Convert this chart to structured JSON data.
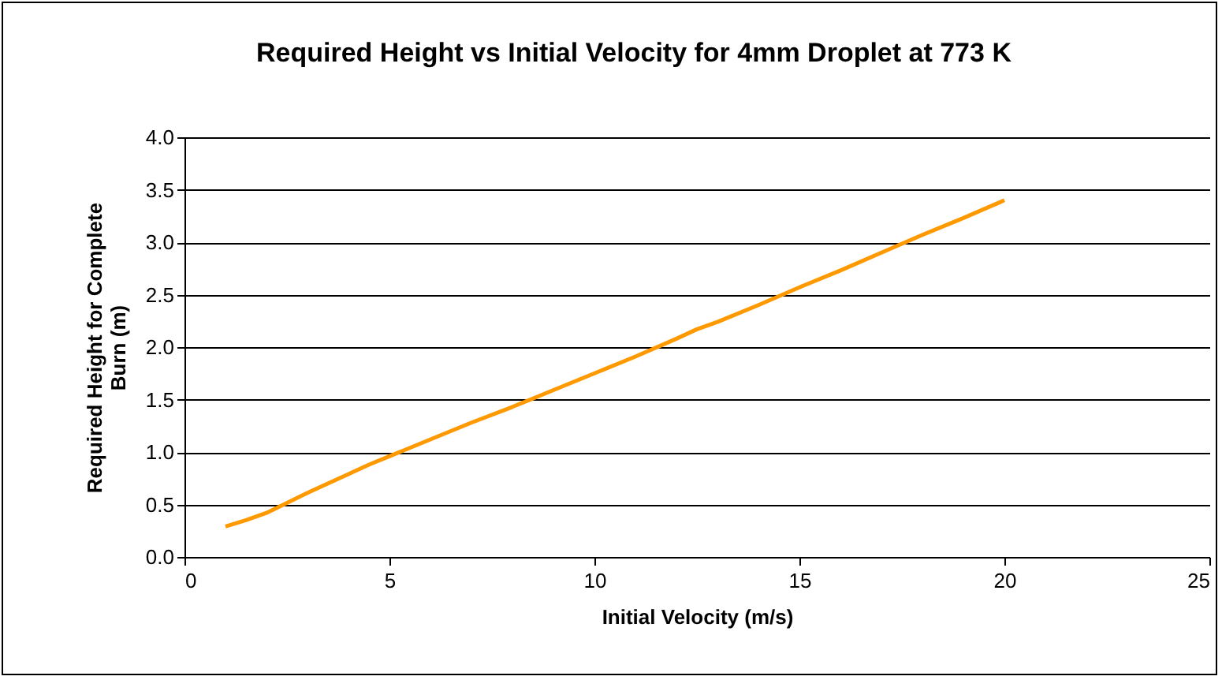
{
  "chart_data": {
    "type": "line",
    "title": "Required Height vs Initial Velocity for 4mm Droplet at 773 K",
    "xlabel": "Initial Velocity (m/s)",
    "ylabel": "Required Height for Complete Burn (m)",
    "x": [
      1,
      1.5,
      2,
      3,
      4,
      4.5,
      5,
      6,
      7,
      8,
      9,
      10,
      11,
      12,
      12.5,
      13,
      14,
      15,
      16,
      17,
      18,
      19,
      20
    ],
    "series": [
      {
        "color": "#ff9900",
        "values": [
          0.29,
          0.35,
          0.42,
          0.61,
          0.79,
          0.88,
          0.96,
          1.12,
          1.28,
          1.43,
          1.59,
          1.75,
          1.91,
          2.08,
          2.17,
          2.24,
          2.4,
          2.57,
          2.73,
          2.9,
          3.07,
          3.23,
          3.4
        ]
      }
    ],
    "xlim": [
      0,
      25
    ],
    "xticks": [
      0,
      5,
      10,
      15,
      20,
      25
    ],
    "ylim": [
      0,
      4
    ],
    "yticks": [
      {
        "value": 0,
        "label": "0.0"
      },
      {
        "value": 0.5,
        "label": "0.5"
      },
      {
        "value": 1,
        "label": "1.0"
      },
      {
        "value": 1.5,
        "label": "1.5"
      },
      {
        "value": 2,
        "label": "2.0"
      },
      {
        "value": 2.5,
        "label": "2.5"
      },
      {
        "value": 3,
        "label": "3.0"
      },
      {
        "value": 3.5,
        "label": "3.5"
      },
      {
        "value": 4,
        "label": "4.0"
      }
    ],
    "grid": "y",
    "legend": false
  }
}
